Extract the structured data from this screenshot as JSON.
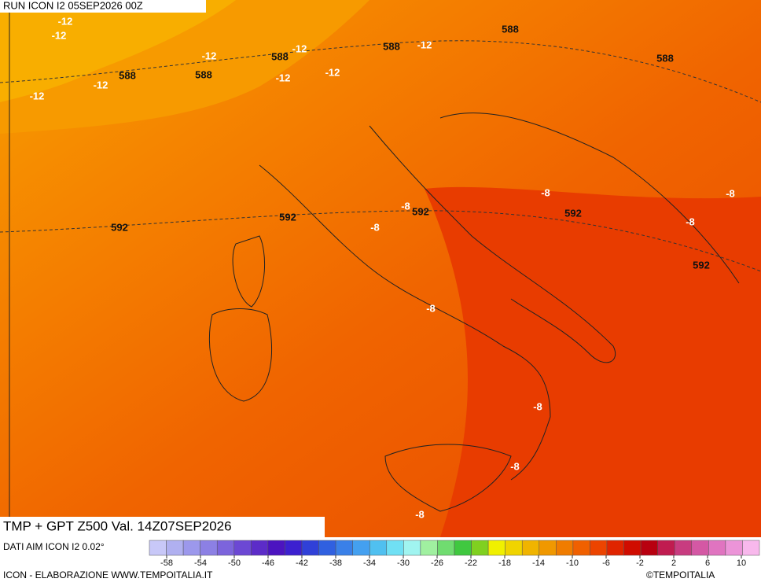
{
  "header": {
    "run": "RUN ICON I2 05SEP2026 00Z",
    "title": "TMP + GPT Z500 Val. 14Z07SEP2026",
    "source": "DATI AIM ICON I2 0.02°",
    "credit": "ICON - ELABORAZIONE WWW.TEMPOITALIA.IT",
    "copyright": "©TEMPOITALIA"
  },
  "map": {
    "geopotential_labels": [
      588,
      588,
      588,
      588,
      588,
      588,
      592,
      592,
      592,
      592,
      592
    ],
    "temperature_labels": [
      -12,
      -12,
      -12,
      -12,
      -12,
      -12,
      -12,
      -12,
      -12,
      -8,
      -8,
      -8,
      -8,
      -8,
      -8,
      -8,
      -8,
      -8
    ]
  },
  "legend": {
    "ticks": [
      -58,
      -54,
      -50,
      -46,
      -42,
      -38,
      -34,
      -30,
      -26,
      -22,
      -18,
      -14,
      -10,
      -6,
      -2,
      2,
      6,
      10
    ],
    "colors": [
      "#c8c8f8",
      "#b0b0f0",
      "#9c98ec",
      "#8c80e4",
      "#7c64dc",
      "#6c48d4",
      "#5c2cc8",
      "#4c14c0",
      "#3c20d0",
      "#3040d8",
      "#3060e0",
      "#3a80e8",
      "#44a0f0",
      "#50c0f0",
      "#70e0f4",
      "#a0f4f0",
      "#a0f0a0",
      "#70dc70",
      "#40c840",
      "#80d020",
      "#f0f000",
      "#f0d400",
      "#f0b400",
      "#f09800",
      "#f07c00",
      "#f06000",
      "#ec4400",
      "#e02400",
      "#d00c00",
      "#b80010",
      "#c01c50",
      "#c83c80",
      "#d458a4",
      "#e074c0",
      "#ec94d8",
      "#f8b8ec"
    ]
  }
}
